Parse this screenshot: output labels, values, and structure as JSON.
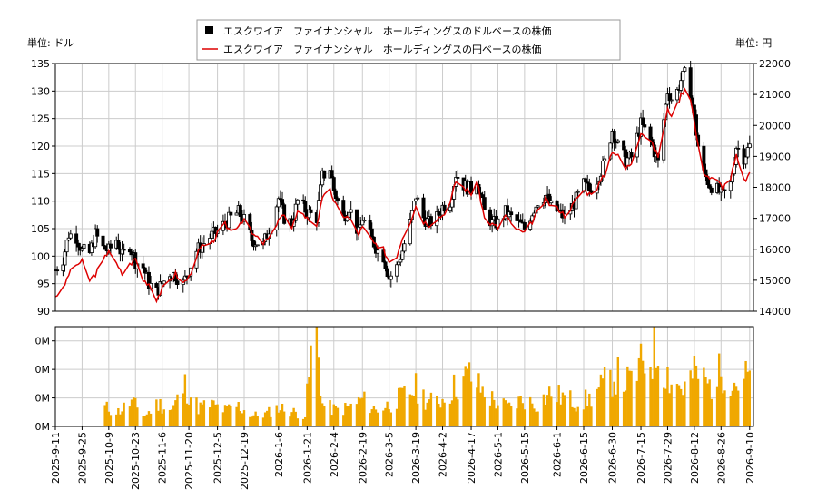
{
  "chart_data": [
    {
      "type": "candlestick-line",
      "legend_placement": "top-center",
      "left_axis_label": "単位: ドル",
      "right_axis_label": "単位: 円",
      "ylim_left": [
        90,
        135
      ],
      "ylim_right": [
        14000,
        22000
      ],
      "yticks_left": [
        90,
        95,
        100,
        105,
        110,
        115,
        120,
        125,
        130,
        135
      ],
      "yticks_right": [
        14000,
        15000,
        16000,
        17000,
        18000,
        19000,
        20000,
        21000,
        22000
      ],
      "grid": true,
      "series": [
        {
          "name": "エスクワイア　ファイナンシャル　ホールディングスのドルベースの株価",
          "style": "candlestick",
          "color": "#000000"
        },
        {
          "name": "エスクワイア　ファイナンシャル　ホールディングスの円ベースの株価",
          "style": "line",
          "color": "#dd0000"
        }
      ],
      "x_start": "2025-09-11",
      "x_end": "2026-09-12",
      "xtick_labels": [
        "2025-9-11",
        "2025-9-25",
        "2025-10-9",
        "2025-10-23",
        "2025-11-6",
        "2025-11-20",
        "2025-12-5",
        "2025-12-19",
        "2026-1-6",
        "2026-1-21",
        "2026-2-4",
        "2026-2-19",
        "2026-3-5",
        "2026-3-19",
        "2026-4-2",
        "2026-4-17",
        "2026-5-1",
        "2026-5-15",
        "2026-6-1",
        "2026-6-15",
        "2026-6-30",
        "2026-7-15",
        "2026-7-29",
        "2026-8-12",
        "2026-8-26",
        "2026-9-10"
      ],
      "dollar_price_points": [
        [
          "2025-09-11",
          97.5
        ],
        [
          "2025-09-15",
          99.5
        ],
        [
          "2025-09-18",
          104
        ],
        [
          "2025-09-22",
          103.5
        ],
        [
          "2025-09-25",
          101
        ],
        [
          "2025-09-29",
          100.5
        ],
        [
          "2025-10-02",
          104
        ],
        [
          "2025-10-06",
          101.5
        ],
        [
          "2025-10-09",
          101
        ],
        [
          "2025-10-13",
          103
        ],
        [
          "2025-10-16",
          100
        ],
        [
          "2025-10-20",
          102
        ],
        [
          "2025-10-23",
          99
        ],
        [
          "2025-10-27",
          98
        ],
        [
          "2025-10-30",
          95
        ],
        [
          "2025-11-03",
          93.5
        ],
        [
          "2025-11-06",
          95
        ],
        [
          "2025-11-10",
          97
        ],
        [
          "2025-11-13",
          96.5
        ],
        [
          "2025-11-17",
          95
        ],
        [
          "2025-11-20",
          97.5
        ],
        [
          "2025-11-24",
          101
        ],
        [
          "2025-11-27",
          102
        ],
        [
          "2025-12-01",
          103.5
        ],
        [
          "2025-12-05",
          104.5
        ],
        [
          "2025-12-09",
          106
        ],
        [
          "2025-12-12",
          107
        ],
        [
          "2025-12-16",
          108
        ],
        [
          "2025-12-19",
          106.5
        ],
        [
          "2025-12-23",
          103
        ],
        [
          "2025-12-29",
          102
        ],
        [
          "2026-01-02",
          106
        ],
        [
          "2026-01-06",
          110.5
        ],
        [
          "2026-01-09",
          107
        ],
        [
          "2026-01-13",
          106
        ],
        [
          "2026-01-16",
          110
        ],
        [
          "2026-01-21",
          108
        ],
        [
          "2026-01-26",
          107
        ],
        [
          "2026-01-29",
          114.5
        ],
        [
          "2026-02-02",
          116
        ],
        [
          "2026-02-04",
          112
        ],
        [
          "2026-02-09",
          107
        ],
        [
          "2026-02-12",
          109
        ],
        [
          "2026-02-17",
          104
        ],
        [
          "2026-02-19",
          107
        ],
        [
          "2026-02-24",
          103
        ],
        [
          "2026-02-27",
          101
        ],
        [
          "2026-03-02",
          100
        ],
        [
          "2026-03-05",
          96
        ],
        [
          "2026-03-09",
          98
        ],
        [
          "2026-03-12",
          101
        ],
        [
          "2026-03-16",
          106
        ],
        [
          "2026-03-19",
          111
        ],
        [
          "2026-03-23",
          107
        ],
        [
          "2026-03-26",
          106
        ],
        [
          "2026-03-30",
          107
        ],
        [
          "2026-04-02",
          109
        ],
        [
          "2026-04-06",
          110
        ],
        [
          "2026-04-09",
          115
        ],
        [
          "2026-04-13",
          113
        ],
        [
          "2026-04-17",
          112
        ],
        [
          "2026-04-20",
          114
        ],
        [
          "2026-04-24",
          108
        ],
        [
          "2026-04-28",
          106
        ],
        [
          "2026-05-01",
          106
        ],
        [
          "2026-05-05",
          108
        ],
        [
          "2026-05-08",
          107
        ],
        [
          "2026-05-12",
          106
        ],
        [
          "2026-05-15",
          105
        ],
        [
          "2026-05-19",
          108
        ],
        [
          "2026-05-22",
          110
        ],
        [
          "2026-05-26",
          111
        ],
        [
          "2026-05-29",
          109
        ],
        [
          "2026-06-02",
          108
        ],
        [
          "2026-06-05",
          107
        ],
        [
          "2026-06-09",
          109
        ],
        [
          "2026-06-12",
          111
        ],
        [
          "2026-06-15",
          113
        ],
        [
          "2026-06-18",
          112
        ],
        [
          "2026-06-22",
          114
        ],
        [
          "2026-06-26",
          117
        ],
        [
          "2026-06-30",
          123
        ],
        [
          "2026-07-03",
          120
        ],
        [
          "2026-07-07",
          117.5
        ],
        [
          "2026-07-10",
          118
        ],
        [
          "2026-07-15",
          124
        ],
        [
          "2026-07-20",
          121
        ],
        [
          "2026-07-24",
          117
        ],
        [
          "2026-07-29",
          130
        ],
        [
          "2026-08-01",
          128
        ],
        [
          "2026-08-05",
          132
        ],
        [
          "2026-08-07",
          133
        ],
        [
          "2026-08-10",
          130
        ],
        [
          "2026-08-12",
          125
        ],
        [
          "2026-08-14",
          120
        ],
        [
          "2026-08-17",
          115
        ],
        [
          "2026-08-20",
          113
        ],
        [
          "2026-08-24",
          112
        ],
        [
          "2026-08-27",
          111
        ],
        [
          "2026-08-31",
          113
        ],
        [
          "2026-09-03",
          120
        ],
        [
          "2026-09-07",
          118
        ],
        [
          "2026-09-10",
          120
        ]
      ],
      "yen_price_points": [
        [
          "2025-09-11",
          14500
        ],
        [
          "2025-09-15",
          14700
        ],
        [
          "2025-09-18",
          15200
        ],
        [
          "2025-09-22",
          15500
        ],
        [
          "2025-09-25",
          15600
        ],
        [
          "2025-09-29",
          15000
        ],
        [
          "2025-10-02",
          15200
        ],
        [
          "2025-10-06",
          15600
        ],
        [
          "2025-10-09",
          16000
        ],
        [
          "2025-10-13",
          15500
        ],
        [
          "2025-10-16",
          15200
        ],
        [
          "2025-10-20",
          15500
        ],
        [
          "2025-10-23",
          15700
        ],
        [
          "2025-10-27",
          15000
        ],
        [
          "2025-10-30",
          14900
        ],
        [
          "2025-11-03",
          14400
        ],
        [
          "2025-11-06",
          14700
        ],
        [
          "2025-11-10",
          15000
        ],
        [
          "2025-11-13",
          15200
        ],
        [
          "2025-11-17",
          14900
        ],
        [
          "2025-11-20",
          15100
        ],
        [
          "2025-11-24",
          15800
        ],
        [
          "2025-11-27",
          16100
        ],
        [
          "2025-12-01",
          16100
        ],
        [
          "2025-12-05",
          16500
        ],
        [
          "2025-12-09",
          16800
        ],
        [
          "2025-12-12",
          16600
        ],
        [
          "2025-12-16",
          16800
        ],
        [
          "2025-12-19",
          17000
        ],
        [
          "2025-12-23",
          16500
        ],
        [
          "2025-12-29",
          16200
        ],
        [
          "2026-01-02",
          16400
        ],
        [
          "2026-01-06",
          17000
        ],
        [
          "2026-01-09",
          17100
        ],
        [
          "2026-01-13",
          16600
        ],
        [
          "2026-01-16",
          17300
        ],
        [
          "2026-01-21",
          17000
        ],
        [
          "2026-01-26",
          16800
        ],
        [
          "2026-01-29",
          17600
        ],
        [
          "2026-02-02",
          18000
        ],
        [
          "2026-02-04",
          17500
        ],
        [
          "2026-02-09",
          17100
        ],
        [
          "2026-02-12",
          17000
        ],
        [
          "2026-02-17",
          16500
        ],
        [
          "2026-02-19",
          16700
        ],
        [
          "2026-02-24",
          16300
        ],
        [
          "2026-02-27",
          16000
        ],
        [
          "2026-03-02",
          16000
        ],
        [
          "2026-03-05",
          15600
        ],
        [
          "2026-03-09",
          15800
        ],
        [
          "2026-03-12",
          16400
        ],
        [
          "2026-03-16",
          16900
        ],
        [
          "2026-03-19",
          17400
        ],
        [
          "2026-03-23",
          16900
        ],
        [
          "2026-03-26",
          16800
        ],
        [
          "2026-03-30",
          17000
        ],
        [
          "2026-04-02",
          17100
        ],
        [
          "2026-04-06",
          17500
        ],
        [
          "2026-04-09",
          18200
        ],
        [
          "2026-04-13",
          18000
        ],
        [
          "2026-04-17",
          17800
        ],
        [
          "2026-04-20",
          18200
        ],
        [
          "2026-04-24",
          17000
        ],
        [
          "2026-04-28",
          16800
        ],
        [
          "2026-05-01",
          16700
        ],
        [
          "2026-05-05",
          17100
        ],
        [
          "2026-05-08",
          16800
        ],
        [
          "2026-05-12",
          16600
        ],
        [
          "2026-05-15",
          16500
        ],
        [
          "2026-05-19",
          16900
        ],
        [
          "2026-05-22",
          17200
        ],
        [
          "2026-05-26",
          17600
        ],
        [
          "2026-05-29",
          17400
        ],
        [
          "2026-06-02",
          17300
        ],
        [
          "2026-06-05",
          17100
        ],
        [
          "2026-06-09",
          17400
        ],
        [
          "2026-06-12",
          17700
        ],
        [
          "2026-06-15",
          17900
        ],
        [
          "2026-06-18",
          17800
        ],
        [
          "2026-06-22",
          18000
        ],
        [
          "2026-06-26",
          18400
        ],
        [
          "2026-06-30",
          19200
        ],
        [
          "2026-07-03",
          19000
        ],
        [
          "2026-07-07",
          18600
        ],
        [
          "2026-07-10",
          18800
        ],
        [
          "2026-07-15",
          19800
        ],
        [
          "2026-07-20",
          19500
        ],
        [
          "2026-07-24",
          19000
        ],
        [
          "2026-07-29",
          20500
        ],
        [
          "2026-08-01",
          20300
        ],
        [
          "2026-08-05",
          21000
        ],
        [
          "2026-08-07",
          21200
        ],
        [
          "2026-08-10",
          20900
        ],
        [
          "2026-08-12",
          20100
        ],
        [
          "2026-08-14",
          19300
        ],
        [
          "2026-08-17",
          18500
        ],
        [
          "2026-08-20",
          18300
        ],
        [
          "2026-08-24",
          18200
        ],
        [
          "2026-08-27",
          18000
        ],
        [
          "2026-08-31",
          18300
        ],
        [
          "2026-09-03",
          19000
        ],
        [
          "2026-09-07",
          18200
        ],
        [
          "2026-09-10",
          18400
        ]
      ]
    },
    {
      "type": "bar",
      "series_color": "#f0a800",
      "ylim": [
        0,
        350
      ],
      "ytick_labels": [
        "0M",
        "0M",
        "0M",
        "0M"
      ],
      "volume_points": [
        [
          "2025-10-07",
          70
        ],
        [
          "2025-10-14",
          55
        ],
        [
          "2025-10-21",
          90
        ],
        [
          "2025-10-28",
          40
        ],
        [
          "2025-11-04",
          85
        ],
        [
          "2025-11-11",
          60
        ],
        [
          "2025-11-18",
          150
        ],
        [
          "2025-11-25",
          70
        ],
        [
          "2025-12-02",
          80
        ],
        [
          "2025-12-09",
          60
        ],
        [
          "2025-12-16",
          75
        ],
        [
          "2025-12-23",
          40
        ],
        [
          "2025-12-30",
          45
        ],
        [
          "2026-01-06",
          70
        ],
        [
          "2026-01-13",
          55
        ],
        [
          "2026-01-20",
          40
        ],
        [
          "2026-01-23",
          260
        ],
        [
          "2026-01-26",
          350
        ],
        [
          "2026-01-29",
          80
        ],
        [
          "2026-02-05",
          60
        ],
        [
          "2026-02-12",
          70
        ],
        [
          "2026-02-19",
          100
        ],
        [
          "2026-02-26",
          60
        ],
        [
          "2026-03-05",
          80
        ],
        [
          "2026-03-12",
          110
        ],
        [
          "2026-03-19",
          140
        ],
        [
          "2026-03-26",
          90
        ],
        [
          "2026-04-02",
          100
        ],
        [
          "2026-04-09",
          150
        ],
        [
          "2026-04-16",
          190
        ],
        [
          "2026-04-23",
          130
        ],
        [
          "2026-04-30",
          90
        ],
        [
          "2026-05-07",
          70
        ],
        [
          "2026-05-14",
          100
        ],
        [
          "2026-05-21",
          80
        ],
        [
          "2026-05-28",
          120
        ],
        [
          "2026-06-04",
          110
        ],
        [
          "2026-06-11",
          90
        ],
        [
          "2026-06-18",
          100
        ],
        [
          "2026-06-25",
          150
        ],
        [
          "2026-07-02",
          190
        ],
        [
          "2026-07-09",
          160
        ],
        [
          "2026-07-16",
          230
        ],
        [
          "2026-07-23",
          280
        ],
        [
          "2026-07-30",
          180
        ],
        [
          "2026-08-06",
          140
        ],
        [
          "2026-08-13",
          200
        ],
        [
          "2026-08-20",
          150
        ],
        [
          "2026-08-27",
          210
        ],
        [
          "2026-09-03",
          160
        ],
        [
          "2026-09-10",
          190
        ]
      ],
      "xtick_labels": [
        "2025-9-11",
        "2025-9-25",
        "2025-10-9",
        "2025-10-23",
        "2025-11-6",
        "2025-11-20",
        "2025-12-5",
        "2025-12-19",
        "2026-1-6",
        "2026-1-21",
        "2026-2-4",
        "2026-2-19",
        "2026-3-5",
        "2026-3-19",
        "2026-4-2",
        "2026-4-17",
        "2026-5-1",
        "2026-5-15",
        "2026-6-1",
        "2026-6-15",
        "2026-6-30",
        "2026-7-15",
        "2026-7-29",
        "2026-8-12",
        "2026-8-26",
        "2026-9-10"
      ]
    }
  ]
}
